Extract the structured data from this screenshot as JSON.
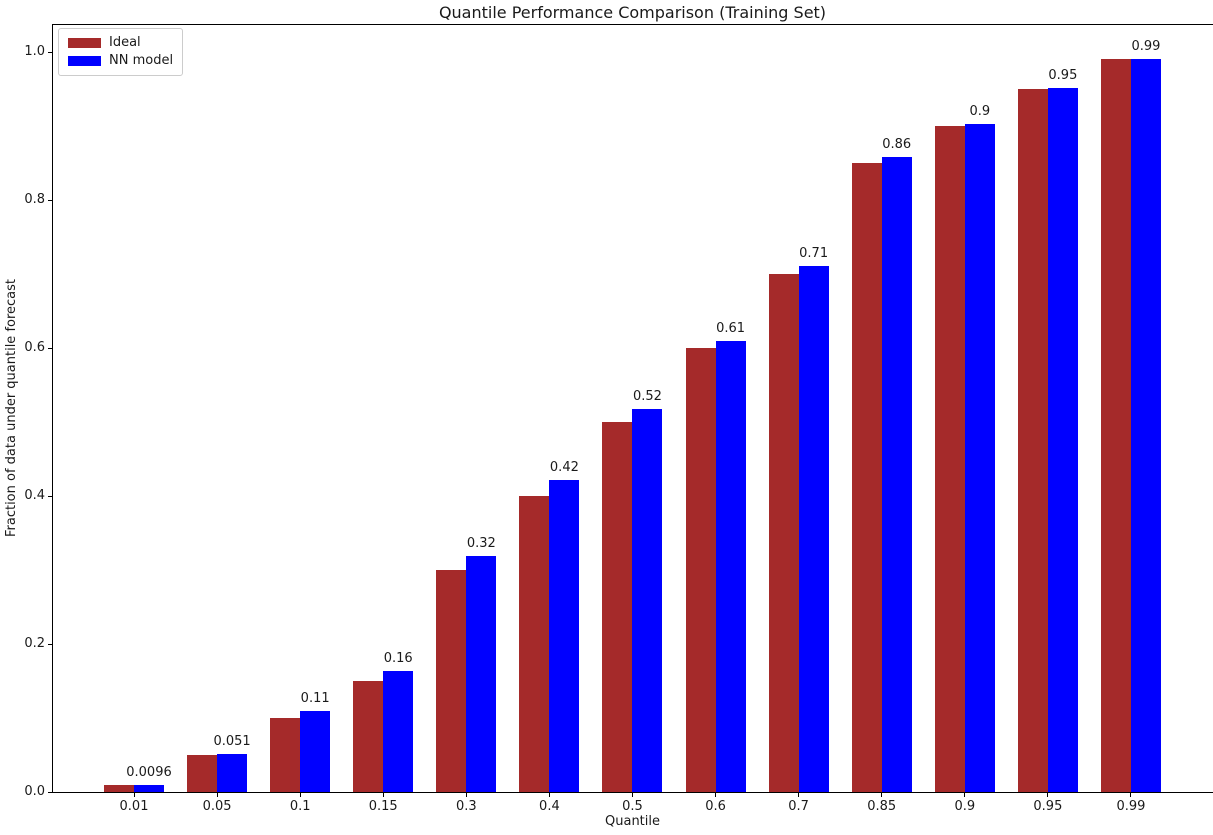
{
  "figure": {
    "title": "Quantile Performance Comparison (Training Set)",
    "xlabel": "Quantile",
    "ylabel": "Fraction of data under quantile forecast"
  },
  "legend": {
    "position": "upper left",
    "items": [
      {
        "label": "Ideal",
        "color": "#A52A2A"
      },
      {
        "label": "NN model",
        "color": "#0000FF"
      }
    ]
  },
  "chart_data": {
    "type": "bar",
    "title": "Quantile Performance Comparison (Training Set)",
    "xlabel": "Quantile",
    "ylabel": "Fraction of data under quantile forecast",
    "categories": [
      "0.01",
      "0.05",
      "0.1",
      "0.15",
      "0.3",
      "0.4",
      "0.5",
      "0.6",
      "0.7",
      "0.85",
      "0.9",
      "0.95",
      "0.99"
    ],
    "series": [
      {
        "name": "Ideal",
        "color": "#A52A2A",
        "values": [
          0.01,
          0.05,
          0.1,
          0.15,
          0.3,
          0.4,
          0.5,
          0.6,
          0.7,
          0.85,
          0.9,
          0.95,
          0.99
        ]
      },
      {
        "name": "NN model",
        "color": "#0000FF",
        "values": [
          0.0096,
          0.051,
          0.109,
          0.163,
          0.319,
          0.422,
          0.518,
          0.61,
          0.711,
          0.858,
          0.903,
          0.951,
          0.991
        ]
      }
    ],
    "bar_labels": [
      "0.0096",
      "0.051",
      "0.11",
      "0.16",
      "0.32",
      "0.42",
      "0.52",
      "0.61",
      "0.71",
      "0.86",
      "0.9",
      "0.95",
      "0.99"
    ],
    "yticks": [
      "0.0",
      "0.2",
      "0.4",
      "0.6",
      "0.8",
      "1.0"
    ],
    "ylim": [
      0,
      1.038
    ],
    "grid": false,
    "legend_position": "upper left"
  }
}
